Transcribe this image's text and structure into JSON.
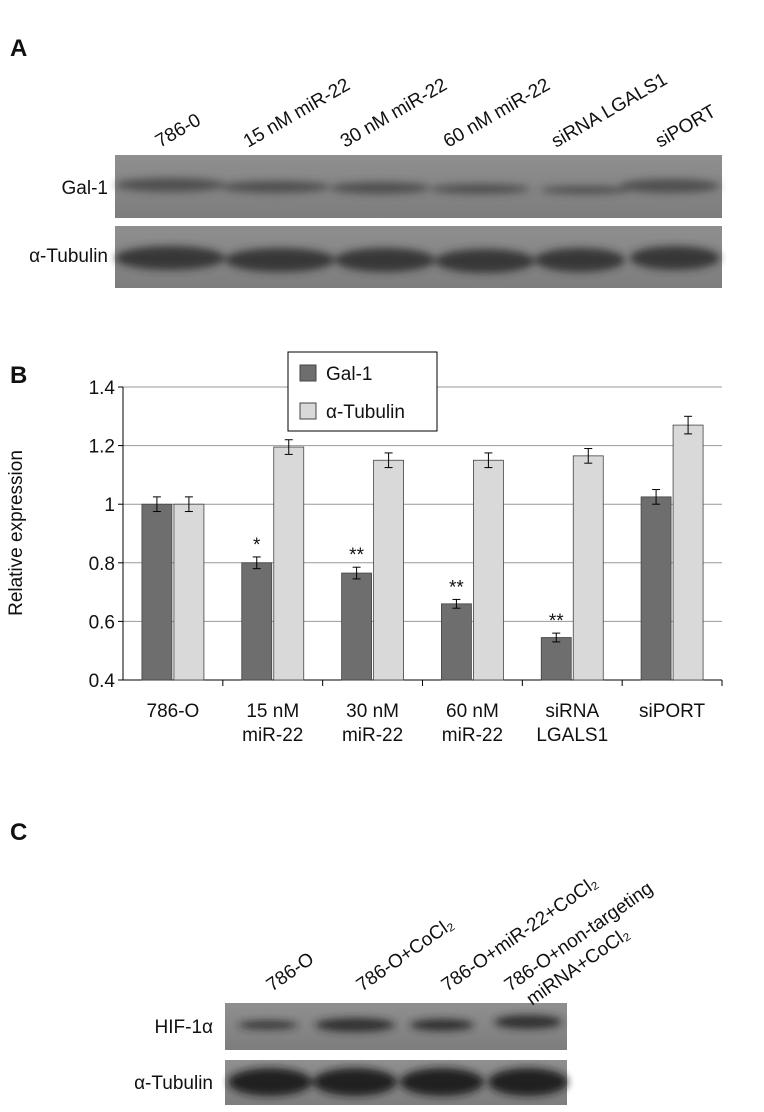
{
  "panel_a": {
    "label": "A",
    "lanes": [
      "786-0",
      "15 nM miR-22",
      "30 nM miR-22",
      "60 nM miR-22",
      "siRNA LGALS1",
      "siPORT"
    ],
    "rows": [
      "Gal-1",
      "α-Tubulin"
    ]
  },
  "chart_data": {
    "type": "bar",
    "label": "B",
    "y_label": "Relative expression",
    "categories": [
      [
        "786-O"
      ],
      [
        "15 nM",
        "miR-22"
      ],
      [
        "30 nM",
        "miR-22"
      ],
      [
        "60 nM",
        "miR-22"
      ],
      [
        "siRNA",
        "LGALS1"
      ],
      [
        "siPORT"
      ]
    ],
    "series": [
      {
        "name": "Gal-1",
        "color": "#6e6e6e",
        "values": [
          1.0,
          0.8,
          0.765,
          0.66,
          0.545,
          1.025
        ],
        "errors": [
          0.025,
          0.02,
          0.02,
          0.015,
          0.015,
          0.025
        ]
      },
      {
        "name": "α-Tubulin",
        "color": "#d9d9d9",
        "values": [
          1.0,
          1.195,
          1.15,
          1.15,
          1.165,
          1.27
        ],
        "errors": [
          0.025,
          0.025,
          0.025,
          0.025,
          0.025,
          0.03
        ]
      }
    ],
    "significance": [
      null,
      "*",
      "**",
      "**",
      "**",
      null
    ],
    "ylim": [
      0.4,
      1.4
    ],
    "yticks": [
      0.4,
      0.6,
      0.8,
      1,
      1.2,
      1.4
    ],
    "grid": true,
    "legend": "top"
  },
  "panel_c": {
    "label": "C",
    "lanes": [
      [
        "786-O"
      ],
      [
        "786-O+CoCl₂"
      ],
      [
        "786-O+miR-22+CoCl₂"
      ],
      [
        "786-O+non-targeting",
        "miRNA+CoCl₂"
      ]
    ],
    "rows": [
      "HIF-1α",
      "α-Tubulin"
    ]
  }
}
